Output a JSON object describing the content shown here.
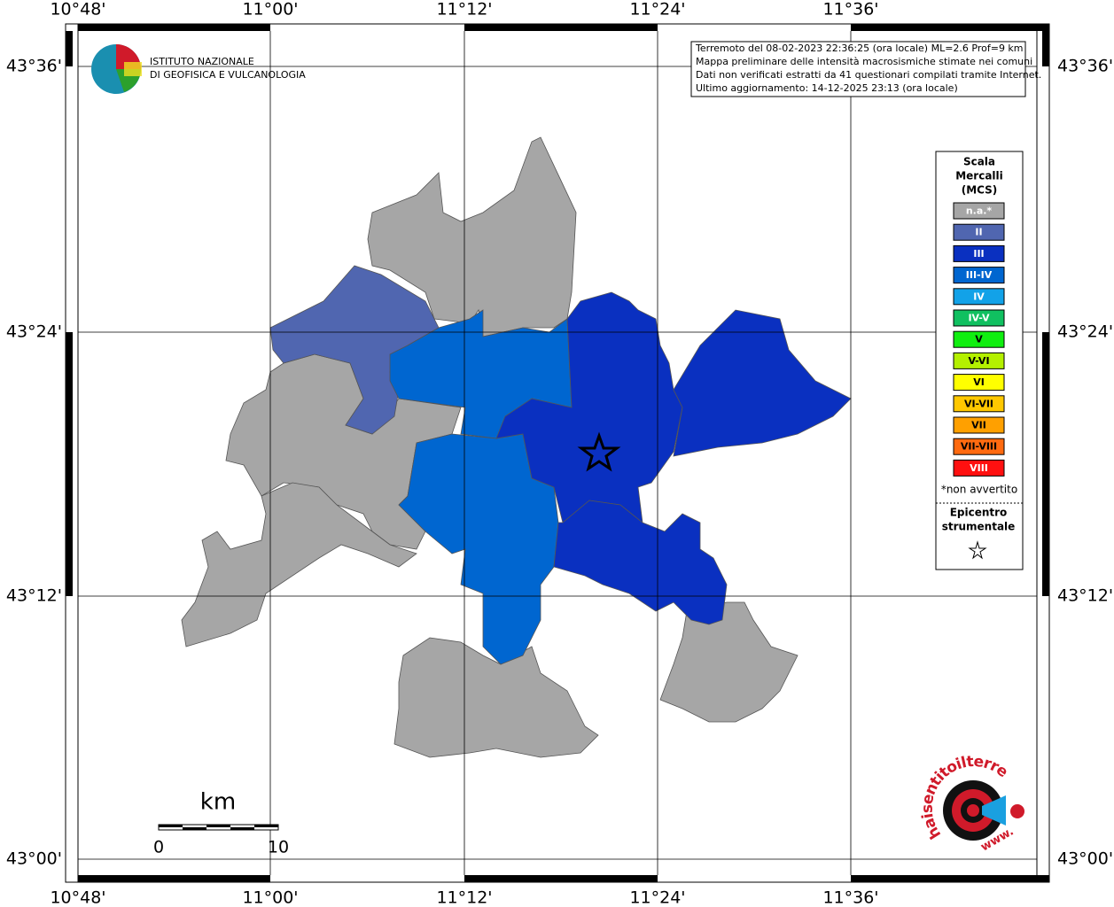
{
  "axes": {
    "longitude": [
      "10°48'",
      "11°00'",
      "11°12'",
      "11°24'",
      "11°36'"
    ],
    "latitude": [
      "43°36'",
      "43°24'",
      "43°12'",
      "43°00'"
    ]
  },
  "logo": {
    "line1": "ISTITUTO NAZIONALE",
    "line2": "DI GEOFISICA E VULCANOLOGIA"
  },
  "info": [
    "Terremoto del 08-02-2023 22:36:25 (ora locale) ML=2.6 Prof=9 km",
    "Mappa preliminare delle intensità macrosismiche stimate nei comuni",
    "Dati non verificati estratti da 41 questionari compilati tramite Internet.",
    "Ultimo aggiornamento: 14-12-2025 23:13 (ora locale)"
  ],
  "legend": {
    "title": [
      "Scala",
      "Mercalli",
      "(MCS)"
    ],
    "items": [
      {
        "label": "n.a.*",
        "color": "#a6a6a6",
        "text": "#ffffff"
      },
      {
        "label": "II",
        "color": "#5066b0",
        "text": "#ffffff"
      },
      {
        "label": "III",
        "color": "#0a30c0",
        "text": "#ffffff"
      },
      {
        "label": "III-IV",
        "color": "#0066d0",
        "text": "#ffffff"
      },
      {
        "label": "IV",
        "color": "#12a2e8",
        "text": "#ffffff"
      },
      {
        "label": "IV-V",
        "color": "#10c060",
        "text": "#ffffff"
      },
      {
        "label": "V",
        "color": "#10ee10",
        "text": "#000000"
      },
      {
        "label": "V-VI",
        "color": "#b4f000",
        "text": "#000000"
      },
      {
        "label": "VI",
        "color": "#ffff00",
        "text": "#000000"
      },
      {
        "label": "VI-VII",
        "color": "#ffc800",
        "text": "#000000"
      },
      {
        "label": "VII",
        "color": "#ffa000",
        "text": "#000000"
      },
      {
        "label": "VII-VIII",
        "color": "#ff6a10",
        "text": "#000000"
      },
      {
        "label": "VIII",
        "color": "#ff1010",
        "text": "#ffffff"
      }
    ],
    "note": "*non avvertito",
    "epicenter": [
      "Epicentro",
      "strumentale"
    ]
  },
  "scale": {
    "unit": "km",
    "labels": [
      "0",
      "10"
    ]
  },
  "watermark": {
    "site": "haisentitoilterremoto.it",
    "prefix": "www."
  }
}
